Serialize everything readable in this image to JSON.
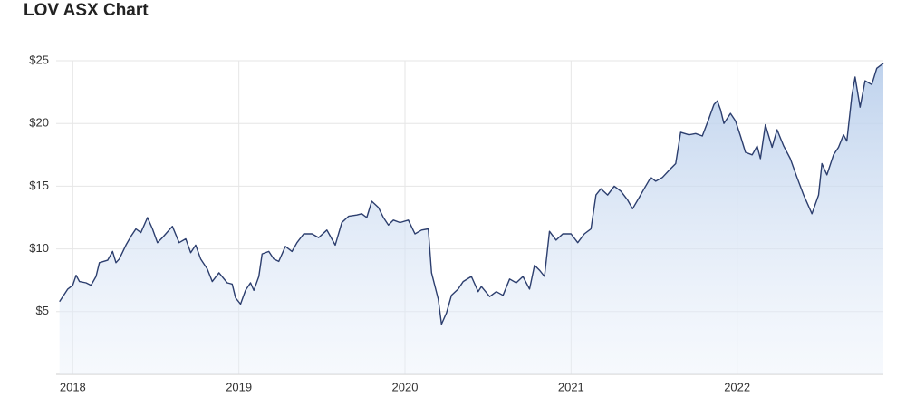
{
  "chart_data": {
    "type": "area",
    "title": "LOV ASX Chart",
    "color": "#2c3e6e",
    "grid": true,
    "xlim": [
      2017.9,
      2022.88
    ],
    "xticks": [
      2018,
      2019,
      2020,
      2021,
      2022
    ],
    "ylim": [
      0,
      25
    ],
    "yticks": [
      {
        "value": 5,
        "label": "$5"
      },
      {
        "value": 10,
        "label": "$10"
      },
      {
        "value": 15,
        "label": "$15"
      },
      {
        "value": 20,
        "label": "$20"
      },
      {
        "value": 25,
        "label": "$25"
      }
    ],
    "x": [
      2017.92,
      2017.97,
      2018.0,
      2018.02,
      2018.04,
      2018.08,
      2018.11,
      2018.14,
      2018.16,
      2018.21,
      2018.24,
      2018.26,
      2018.28,
      2018.32,
      2018.35,
      2018.38,
      2018.41,
      2018.45,
      2018.48,
      2018.51,
      2018.54,
      2018.6,
      2018.64,
      2018.68,
      2018.71,
      2018.74,
      2018.77,
      2018.81,
      2018.84,
      2018.88,
      2018.93,
      2018.96,
      2018.98,
      2019.01,
      2019.04,
      2019.07,
      2019.09,
      2019.12,
      2019.14,
      2019.18,
      2019.21,
      2019.24,
      2019.28,
      2019.32,
      2019.35,
      2019.39,
      2019.44,
      2019.48,
      2019.53,
      2019.58,
      2019.62,
      2019.66,
      2019.71,
      2019.74,
      2019.77,
      2019.8,
      2019.84,
      2019.87,
      2019.9,
      2019.93,
      2019.97,
      2020.02,
      2020.06,
      2020.1,
      2020.14,
      2020.16,
      2020.2,
      2020.22,
      2020.25,
      2020.28,
      2020.32,
      2020.35,
      2020.4,
      2020.44,
      2020.46,
      2020.51,
      2020.55,
      2020.59,
      2020.63,
      2020.67,
      2020.71,
      2020.75,
      2020.78,
      2020.81,
      2020.84,
      2020.87,
      2020.91,
      2020.95,
      2021.0,
      2021.04,
      2021.08,
      2021.12,
      2021.15,
      2021.18,
      2021.22,
      2021.26,
      2021.3,
      2021.34,
      2021.37,
      2021.41,
      2021.44,
      2021.48,
      2021.51,
      2021.55,
      2021.6,
      2021.63,
      2021.66,
      2021.71,
      2021.75,
      2021.79,
      2021.83,
      2021.86,
      2021.88,
      2021.9,
      2021.92,
      2021.96,
      2021.99,
      2022.02,
      2022.05,
      2022.09,
      2022.12,
      2022.14,
      2022.17,
      2022.21,
      2022.24,
      2022.28,
      2022.32,
      2022.36,
      2022.4,
      2022.45,
      2022.49,
      2022.51,
      2022.54,
      2022.58,
      2022.61,
      2022.64,
      2022.66,
      2022.69,
      2022.71,
      2022.74,
      2022.77,
      2022.81,
      2022.84,
      2022.88
    ],
    "values": [
      5.8,
      6.8,
      7.1,
      7.9,
      7.4,
      7.3,
      7.1,
      7.8,
      8.9,
      9.1,
      9.8,
      8.9,
      9.2,
      10.3,
      11.0,
      11.6,
      11.3,
      12.5,
      11.6,
      10.5,
      10.9,
      11.8,
      10.5,
      10.8,
      9.7,
      10.3,
      9.2,
      8.4,
      7.4,
      8.1,
      7.3,
      7.2,
      6.1,
      5.6,
      6.7,
      7.3,
      6.7,
      7.8,
      9.6,
      9.8,
      9.2,
      9.0,
      10.2,
      9.8,
      10.5,
      11.2,
      11.2,
      10.9,
      11.5,
      10.3,
      12.1,
      12.6,
      12.7,
      12.8,
      12.5,
      13.8,
      13.3,
      12.5,
      11.9,
      12.3,
      12.1,
      12.3,
      11.2,
      11.5,
      11.6,
      8.1,
      6.0,
      4.0,
      4.9,
      6.3,
      6.8,
      7.4,
      7.8,
      6.6,
      7.0,
      6.2,
      6.6,
      6.3,
      7.6,
      7.3,
      7.8,
      6.8,
      8.7,
      8.3,
      7.8,
      11.4,
      10.7,
      11.2,
      11.2,
      10.5,
      11.2,
      11.6,
      14.3,
      14.8,
      14.3,
      15.0,
      14.6,
      13.9,
      13.2,
      14.1,
      14.8,
      15.7,
      15.4,
      15.7,
      16.4,
      16.8,
      19.3,
      19.1,
      19.2,
      19.0,
      20.4,
      21.5,
      21.8,
      21.1,
      20.0,
      20.8,
      20.2,
      19.0,
      17.7,
      17.5,
      18.2,
      17.2,
      19.9,
      18.1,
      19.5,
      18.2,
      17.2,
      15.7,
      14.3,
      12.8,
      14.3,
      16.8,
      15.9,
      17.5,
      18.1,
      19.1,
      18.6,
      22.2,
      23.7,
      21.3,
      23.4,
      23.1,
      24.4,
      24.8
    ]
  }
}
